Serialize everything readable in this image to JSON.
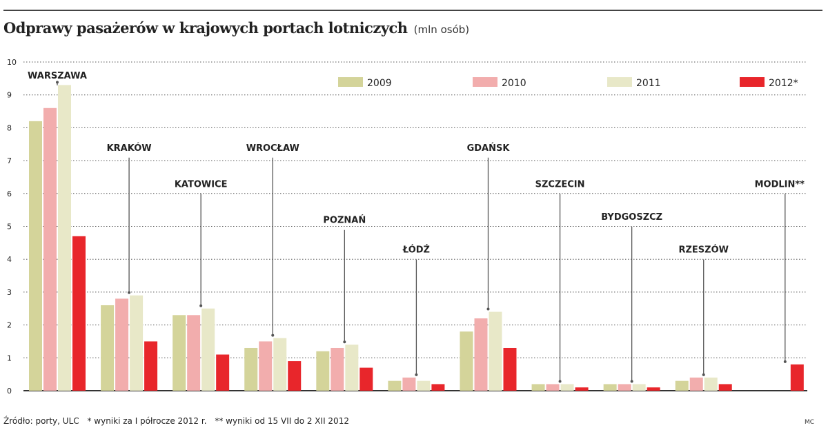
{
  "header": {
    "title": "Odprawy pasażerów w krajowych portach lotniczych",
    "subtitle": "(mln osób)"
  },
  "footer": {
    "source": "Źródło: porty, ULC",
    "note1": "* wyniki za I półrocze 2012 r.",
    "note2": "** wyniki od 15 VII do 2 XII 2012",
    "credit": "MC"
  },
  "colors": {
    "2009": "#d4d49a",
    "2010": "#f2adad",
    "2011": "#e8e8c8",
    "2012*": "#e8262b",
    "grid": "#555555",
    "leader": "#555555"
  },
  "chart_data": {
    "type": "bar",
    "title": "Odprawy pasażerów w krajowych portach lotniczych",
    "subtitle": "(mln osób)",
    "categories": [
      "WARSZAWA",
      "KRAKÓW",
      "KATOWICE",
      "WROCŁAW",
      "POZNAŃ",
      "ŁÓDŹ",
      "GDAŃSK",
      "SZCZECIN",
      "BYDGOSZCZ",
      "RZESZÓW",
      "MODLIN**"
    ],
    "label_levels": [
      9.5,
      7.3,
      6.2,
      7.3,
      5.1,
      4.2,
      7.3,
      6.2,
      5.2,
      4.2,
      6.2
    ],
    "series": [
      {
        "name": "2009",
        "values": [
          8.2,
          2.6,
          2.3,
          1.3,
          1.2,
          0.3,
          1.8,
          0.2,
          0.2,
          0.3,
          null
        ]
      },
      {
        "name": "2010",
        "values": [
          8.6,
          2.8,
          2.3,
          1.5,
          1.3,
          0.4,
          2.2,
          0.2,
          0.2,
          0.4,
          null
        ]
      },
      {
        "name": "2011",
        "values": [
          9.3,
          2.9,
          2.5,
          1.6,
          1.4,
          0.3,
          2.4,
          0.2,
          0.2,
          0.4,
          null
        ]
      },
      {
        "name": "2012*",
        "values": [
          4.7,
          1.5,
          1.1,
          0.9,
          0.7,
          0.2,
          1.3,
          0.1,
          0.1,
          0.2,
          0.8
        ]
      }
    ],
    "ylim": [
      0,
      10
    ],
    "yticks": [
      0,
      1,
      2,
      3,
      4,
      5,
      6,
      7,
      8,
      9,
      10
    ],
    "grid": true,
    "legend": "top-right"
  }
}
